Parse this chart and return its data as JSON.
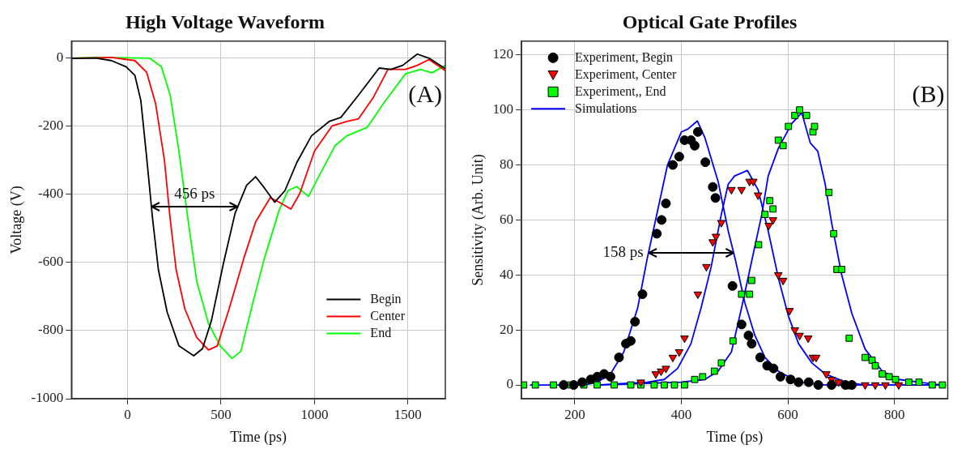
{
  "chart_data": [
    {
      "type": "line",
      "title": "High Voltage Waveform",
      "xlabel": "Time (ps)",
      "ylabel": "Voltage (V)",
      "xlim": [
        -300,
        1700
      ],
      "xticks": [
        0,
        500,
        1000,
        1500
      ],
      "ylim": [
        -1000,
        50
      ],
      "yticks": [
        -1000,
        -800,
        -600,
        -400,
        -200,
        0
      ],
      "grid": true,
      "legend": "bottom right",
      "marker": "none",
      "line_style": "solid",
      "annotations": [
        "(A)",
        {
          "text": "456 ps",
          "x": 128,
          "y": -437
        }
      ],
      "series": [
        {
          "name": "Begin",
          "color": "#000000",
          "x": [
            -300,
            -165,
            -87,
            -8,
            39,
            71,
            102,
            134,
            165,
            212,
            275,
            354,
            401,
            449,
            512,
            575,
            637,
            685,
            732,
            787,
            842,
            905,
            984,
            1078,
            1141,
            1236,
            1346,
            1409,
            1472,
            1550,
            1613,
            1700
          ],
          "values": [
            0,
            0,
            -7,
            -25,
            -50,
            -124,
            -290,
            -472,
            -621,
            -746,
            -845,
            -874,
            -853,
            -770,
            -605,
            -456,
            -373,
            -348,
            -381,
            -423,
            -389,
            -307,
            -228,
            -186,
            -174,
            -108,
            -29,
            -33,
            -21,
            12,
            0,
            -31
          ]
        },
        {
          "name": "Center",
          "color": "#ff0000",
          "x": [
            -300,
            -87,
            39,
            102,
            150,
            197,
            228,
            260,
            307,
            370,
            433,
            480,
            543,
            622,
            685,
            763,
            811,
            874,
            921,
            1000,
            1094,
            1173,
            1236,
            1314,
            1393,
            1487,
            1550,
            1613,
            1700
          ],
          "values": [
            0,
            2,
            -7,
            -41,
            -133,
            -298,
            -472,
            -621,
            -737,
            -820,
            -857,
            -845,
            -737,
            -588,
            -481,
            -410,
            -423,
            -443,
            -398,
            -273,
            -199,
            -186,
            -178,
            -116,
            -33,
            -33,
            -21,
            -4,
            -37
          ]
        },
        {
          "name": "End",
          "color": "#00ff00",
          "x": [
            -300,
            -165,
            118,
            181,
            228,
            275,
            323,
            370,
            433,
            496,
            559,
            606,
            669,
            732,
            811,
            858,
            905,
            968,
            1015,
            1110,
            1173,
            1283,
            1369,
            1487,
            1566,
            1629,
            1700
          ],
          "values": [
            0,
            3,
            0,
            -25,
            -108,
            -273,
            -472,
            -655,
            -779,
            -845,
            -882,
            -861,
            -721,
            -588,
            -447,
            -389,
            -377,
            -406,
            -356,
            -257,
            -228,
            -203,
            -133,
            -46,
            -33,
            -43,
            -21
          ]
        }
      ]
    },
    {
      "type": "scatter",
      "title": "Optical Gate Profiles",
      "xlabel": "Time (ps)",
      "ylabel": "Sensitivity (Arb. Unit)",
      "xlim": [
        100,
        900
      ],
      "xticks": [
        200,
        400,
        600,
        800
      ],
      "ylim": [
        -5,
        125
      ],
      "yticks": [
        0,
        20,
        40,
        60,
        80,
        100,
        120
      ],
      "grid": true,
      "legend": "top left",
      "annotations": [
        "(B)",
        {
          "text": "158 ps",
          "x": 338,
          "y": 48
        }
      ],
      "series": [
        {
          "name": "Experiment, Begin",
          "color": "#000000",
          "marker": "circle",
          "x": [
            179,
            198,
            214,
            230,
            242,
            255,
            267,
            283,
            296,
            305,
            313,
            327,
            354,
            363,
            371,
            384,
            396,
            406,
            418,
            425,
            431,
            445,
            459,
            464,
            496,
            513,
            526,
            532,
            548,
            561,
            573,
            586,
            605,
            620,
            639,
            657,
            682,
            708,
            720
          ],
          "values": [
            0,
            0,
            1,
            2,
            3,
            4,
            3,
            10,
            15,
            16,
            23,
            33,
            55,
            60,
            66,
            80,
            83,
            89,
            89,
            87,
            92,
            81,
            72,
            68,
            36,
            22,
            18,
            15,
            10,
            7,
            6,
            3,
            2,
            1,
            1,
            0,
            0,
            0,
            0
          ]
        },
        {
          "name": "Experiment, Center",
          "color": "#ff0000",
          "marker": "triangle",
          "x": [
            324,
            352,
            362,
            371,
            384,
            396,
            406,
            431,
            447,
            459,
            465,
            475,
            494,
            513,
            528,
            535,
            544,
            564,
            572,
            582,
            591,
            603,
            613,
            622,
            638,
            647,
            653,
            672,
            682,
            695,
            714,
            745,
            764,
            783,
            808
          ],
          "values": [
            1,
            4,
            5,
            6,
            10,
            12,
            17,
            33,
            43,
            52,
            54,
            59,
            71,
            71,
            74,
            74,
            69,
            58,
            60,
            40,
            38,
            27,
            20,
            18,
            17,
            10,
            10,
            4,
            2,
            1,
            0,
            0,
            0,
            0,
            0
          ]
        },
        {
          "name": "Experiment,, End",
          "color": "#00ff00",
          "marker": "square",
          "x": [
            104,
            126,
            160,
            192,
            217,
            242,
            274,
            305,
            324,
            349,
            368,
            387,
            406,
            425,
            440,
            462,
            475,
            497,
            513,
            528,
            532,
            545,
            557,
            566,
            572,
            582,
            591,
            601,
            613,
            622,
            635,
            647,
            650,
            677,
            686,
            692,
            701,
            715,
            745,
            758,
            764,
            777,
            790,
            802,
            827,
            846,
            871,
            890
          ],
          "values": [
            0,
            0,
            0,
            0,
            0,
            0,
            0,
            0,
            0,
            0,
            0,
            0,
            0,
            2,
            3,
            5,
            8,
            16,
            33,
            33,
            38,
            51,
            62,
            67,
            64,
            89,
            87,
            94,
            98,
            100,
            98,
            92,
            94,
            70,
            55,
            42,
            42,
            17,
            10,
            9,
            7,
            4,
            3,
            2,
            1,
            1,
            0,
            0
          ]
        },
        {
          "name": "Simulations",
          "type": "line",
          "color": "#0000ff",
          "marker": "none",
          "x": [
            116,
            217,
            242,
            267,
            292,
            318,
            336,
            355,
            374,
            400,
            412,
            430,
            444,
            469,
            488,
            502,
            519,
            538,
            557,
            582,
            620,
            670,
            745,
            890
          ],
          "values": [
            0,
            0,
            1,
            4,
            12,
            28,
            46,
            63,
            80,
            92,
            93,
            96,
            90,
            74,
            56,
            45,
            30,
            18,
            10,
            5,
            1,
            0,
            0,
            0
          ]
        },
        {
          "type": "line",
          "color": "#0000ff",
          "marker": "none",
          "x": [
            242,
            336,
            368,
            393,
            418,
            437,
            456,
            475,
            488,
            500,
            524,
            544,
            563,
            582,
            601,
            620,
            645,
            670,
            708,
            745,
            890
          ],
          "values": [
            0,
            1,
            2,
            6,
            15,
            28,
            43,
            62,
            73,
            76,
            78,
            71,
            56,
            39,
            25,
            15,
            8,
            4,
            1,
            0,
            0
          ]
        },
        {
          "type": "line",
          "color": "#0000ff",
          "marker": "none",
          "x": [
            242,
            400,
            444,
            469,
            494,
            513,
            532,
            551,
            563,
            582,
            607,
            626,
            642,
            656,
            670,
            682,
            701,
            720,
            745,
            777,
            808,
            846,
            890
          ],
          "values": [
            0,
            1,
            2,
            5,
            12,
            28,
            45,
            62,
            76,
            86,
            95,
            99,
            88,
            85,
            73,
            59,
            40,
            26,
            13,
            5,
            2,
            1,
            0
          ]
        }
      ]
    }
  ]
}
